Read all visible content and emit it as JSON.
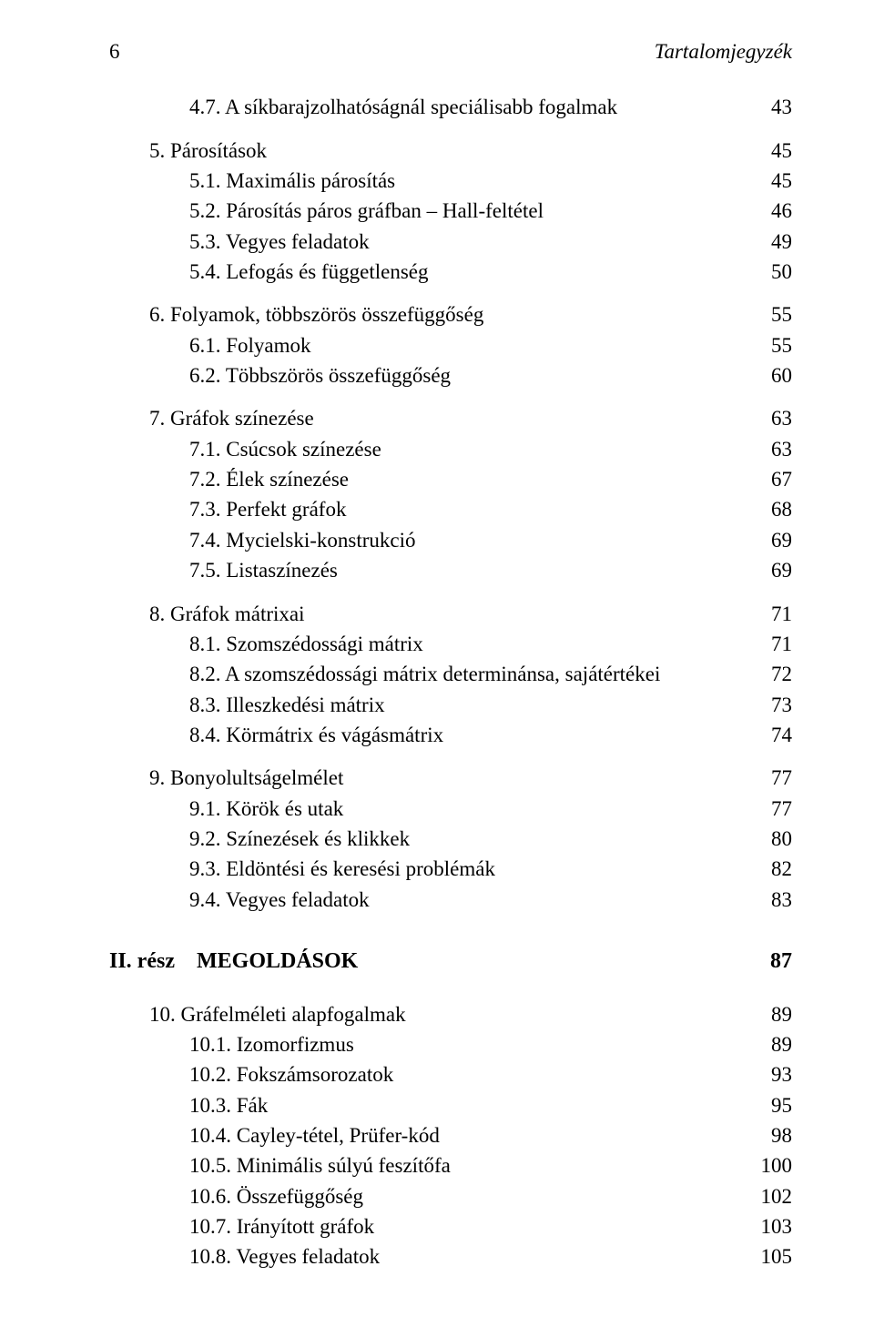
{
  "header": {
    "page_number": "6",
    "title": "Tartalomjegyzék"
  },
  "toc": {
    "s4_7": {
      "num": "4.7.",
      "title": "A síkbarajzolhatóságnál speciálisabb fogalmak",
      "page": "43"
    },
    "s5": {
      "num": "5.",
      "title": "Párosítások",
      "page": "45"
    },
    "s5_1": {
      "num": "5.1.",
      "title": "Maximális párosítás",
      "page": "45"
    },
    "s5_2": {
      "num": "5.2.",
      "title": "Párosítás páros gráfban – Hall-feltétel",
      "page": "46"
    },
    "s5_3": {
      "num": "5.3.",
      "title": "Vegyes feladatok",
      "page": "49"
    },
    "s5_4": {
      "num": "5.4.",
      "title": "Lefogás és függetlenség",
      "page": "50"
    },
    "s6": {
      "num": "6.",
      "title": "Folyamok, többszörös összefüggőség",
      "page": "55"
    },
    "s6_1": {
      "num": "6.1.",
      "title": "Folyamok",
      "page": "55"
    },
    "s6_2": {
      "num": "6.2.",
      "title": "Többszörös összefüggőség",
      "page": "60"
    },
    "s7": {
      "num": "7.",
      "title": "Gráfok színezése",
      "page": "63"
    },
    "s7_1": {
      "num": "7.1.",
      "title": "Csúcsok színezése",
      "page": "63"
    },
    "s7_2": {
      "num": "7.2.",
      "title": "Élek színezése",
      "page": "67"
    },
    "s7_3": {
      "num": "7.3.",
      "title": "Perfekt gráfok",
      "page": "68"
    },
    "s7_4": {
      "num": "7.4.",
      "title": "Mycielski-konstrukció",
      "page": "69"
    },
    "s7_5": {
      "num": "7.5.",
      "title": "Listaszínezés",
      "page": "69"
    },
    "s8": {
      "num": "8.",
      "title": "Gráfok mátrixai",
      "page": "71"
    },
    "s8_1": {
      "num": "8.1.",
      "title": "Szomszédossági mátrix",
      "page": "71"
    },
    "s8_2": {
      "num": "8.2.",
      "title": "A szomszédossági mátrix determinánsa, sajátértékei",
      "page": "72"
    },
    "s8_3": {
      "num": "8.3.",
      "title": "Illeszkedési mátrix",
      "page": "73"
    },
    "s8_4": {
      "num": "8.4.",
      "title": "Körmátrix és vágásmátrix",
      "page": "74"
    },
    "s9": {
      "num": "9.",
      "title": "Bonyolultságelmélet",
      "page": "77"
    },
    "s9_1": {
      "num": "9.1.",
      "title": "Körök és utak",
      "page": "77"
    },
    "s9_2": {
      "num": "9.2.",
      "title": "Színezések és klikkek",
      "page": "80"
    },
    "s9_3": {
      "num": "9.3.",
      "title": "Eldöntési és keresési problémák",
      "page": "82"
    },
    "s9_4": {
      "num": "9.4.",
      "title": "Vegyes feladatok",
      "page": "83"
    },
    "part2": {
      "label": "II. rész",
      "title": "MEGOLDÁSOK",
      "page": "87"
    },
    "s10": {
      "num": "10.",
      "title": "Gráfelméleti alapfogalmak",
      "page": "89"
    },
    "s10_1": {
      "num": "10.1.",
      "title": "Izomorfizmus",
      "page": "89"
    },
    "s10_2": {
      "num": "10.2.",
      "title": "Fokszámsorozatok",
      "page": "93"
    },
    "s10_3": {
      "num": "10.3.",
      "title": "Fák",
      "page": "95"
    },
    "s10_4": {
      "num": "10.4.",
      "title": "Cayley-tétel, Prüfer-kód",
      "page": "98"
    },
    "s10_5": {
      "num": "10.5.",
      "title": "Minimális súlyú feszítőfa",
      "page": "100"
    },
    "s10_6": {
      "num": "10.6.",
      "title": "Összefüggőség",
      "page": "102"
    },
    "s10_7": {
      "num": "10.7.",
      "title": "Irányított gráfok",
      "page": "103"
    },
    "s10_8": {
      "num": "10.8.",
      "title": "Vegyes feladatok",
      "page": "105"
    }
  }
}
